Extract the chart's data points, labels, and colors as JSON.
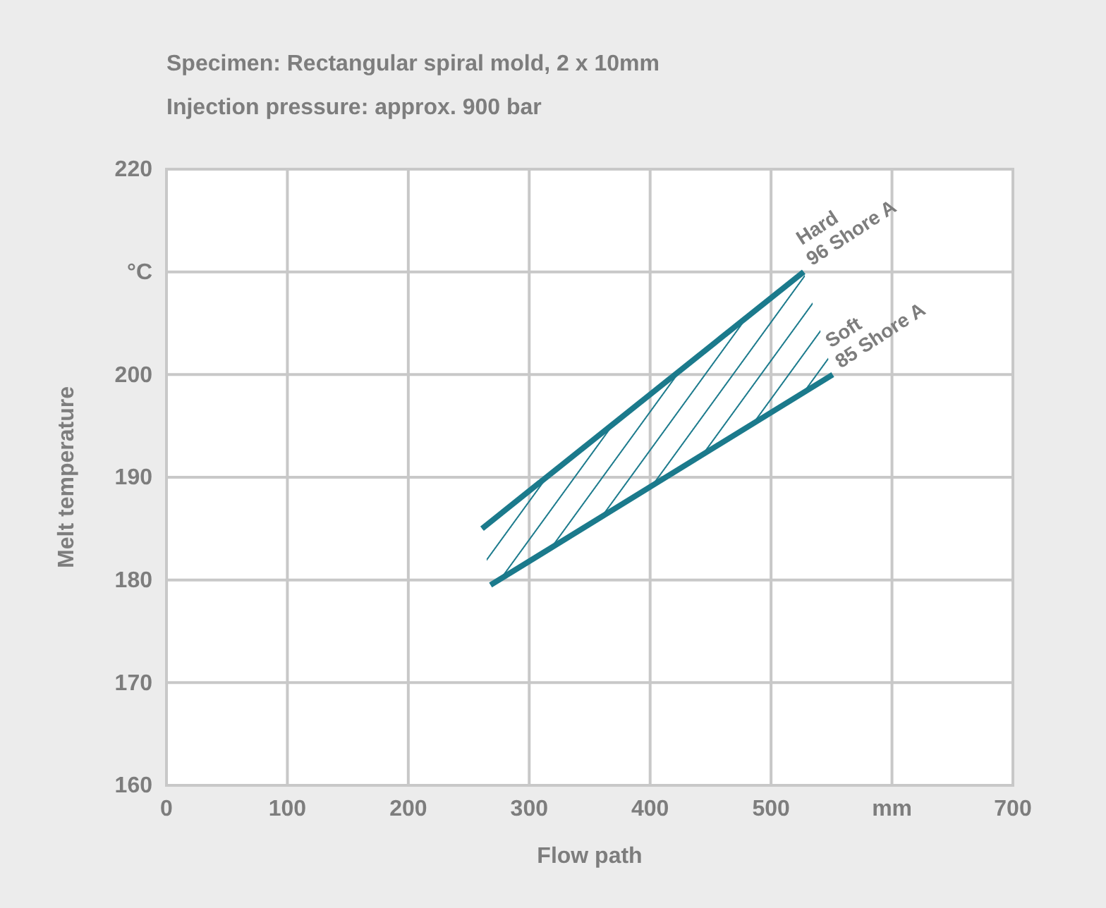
{
  "chart_data": {
    "type": "line",
    "title": "Specimen: Rectangular spiral mold, 2 x 10mm",
    "subtitle": "Injection pressure: approx. 900 bar",
    "xlabel": "Flow path",
    "ylabel": "Melt temperature",
    "xlim": [
      0,
      700
    ],
    "xticks": [
      0,
      100,
      200,
      300,
      400,
      500,
      {
        "value": 600,
        "label": "mm"
      },
      700
    ],
    "ylim": [
      160,
      220
    ],
    "yticks": [
      160,
      170,
      180,
      190,
      200,
      {
        "value": 210,
        "label": "°C"
      },
      220
    ],
    "grid": true,
    "legend": false,
    "marker": "none",
    "line_style": "solid",
    "series": [
      {
        "name": "Hard 96 Shore A",
        "color": "#1b7a8c",
        "x": [
          261,
          527
        ],
        "values": [
          185,
          210
        ]
      },
      {
        "name": "Soft 85 Shore A",
        "color": "#1b7a8c",
        "x": [
          268,
          551
        ],
        "values": [
          179.5,
          200
        ]
      }
    ]
  }
}
